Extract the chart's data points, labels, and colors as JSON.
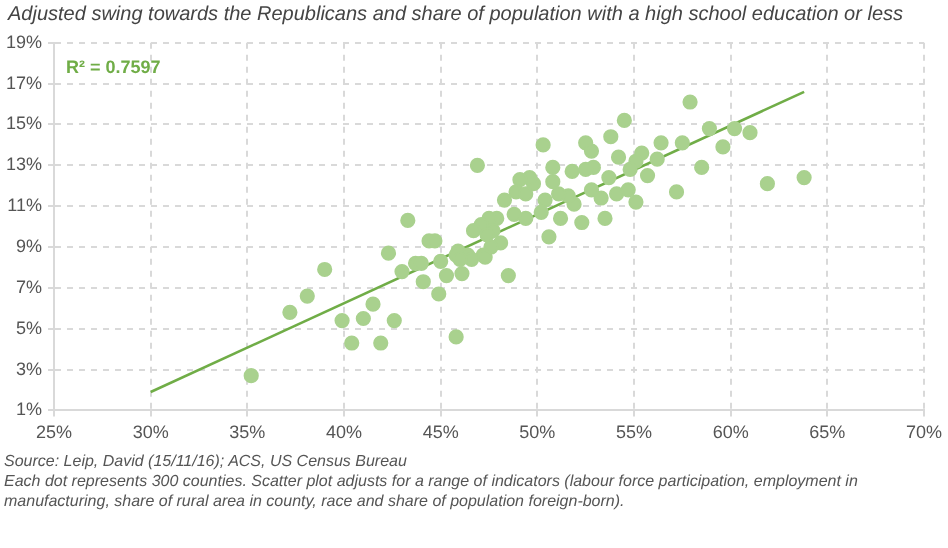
{
  "chart_data": {
    "type": "scatter",
    "title": "Adjusted swing towards the Republicans and share of population with a high school education or less",
    "xlim": [
      25,
      70
    ],
    "xticks": [
      {
        "value": 25,
        "label": "25%"
      },
      {
        "value": 30,
        "label": "30%"
      },
      {
        "value": 35,
        "label": "35%"
      },
      {
        "value": 40,
        "label": "40%"
      },
      {
        "value": 45,
        "label": "45%"
      },
      {
        "value": 50,
        "label": "50%"
      },
      {
        "value": 55,
        "label": "55%"
      },
      {
        "value": 60,
        "label": "60%"
      },
      {
        "value": 65,
        "label": "65%"
      },
      {
        "value": 70,
        "label": "70%"
      }
    ],
    "ylim": [
      1,
      19
    ],
    "yticks": [
      {
        "value": 1,
        "label": "1%"
      },
      {
        "value": 3,
        "label": "3%"
      },
      {
        "value": 5,
        "label": "5%"
      },
      {
        "value": 7,
        "label": "7%"
      },
      {
        "value": 9,
        "label": "9%"
      },
      {
        "value": 11,
        "label": "11%"
      },
      {
        "value": 13,
        "label": "13%"
      },
      {
        "value": 15,
        "label": "15%"
      },
      {
        "value": 17,
        "label": "17%"
      },
      {
        "value": 19,
        "label": "19%"
      }
    ],
    "grid": true,
    "legend": false,
    "marker": "circle",
    "series": [
      {
        "color": "#a9d18e",
        "x": [
          57.9,
          58.9,
          60.2,
          61.0,
          59.6,
          58.5,
          61.9,
          63.8,
          57.2,
          57.5,
          56.4,
          56.2,
          55.7,
          55.4,
          55.1,
          54.5,
          53.8,
          54.2,
          54.8,
          54.7,
          54.1,
          55.1,
          53.5,
          53.3,
          52.8,
          53.7,
          52.5,
          52.8,
          52.9,
          52.5,
          51.8,
          52.3,
          51.9,
          51.6,
          51.2,
          51.1,
          50.8,
          50.8,
          50.3,
          50.4,
          50.2,
          50.6,
          49.8,
          49.6,
          49.1,
          48.9,
          49.4,
          49.4,
          48.8,
          48.3,
          47.9,
          47.5,
          46.9,
          47.1,
          46.7,
          47.7,
          47.4,
          48.1,
          47.6,
          44.4,
          44.7,
          43.3,
          45.9,
          46.4,
          47.2,
          42.3,
          39.0,
          43.0,
          43.7,
          44.0,
          44.1,
          45.0,
          45.3,
          44.9,
          45.8,
          46.1,
          46.6,
          46.0,
          47.3,
          48.5,
          45.8,
          38.1,
          37.2,
          41.5,
          39.9,
          41.0,
          42.6,
          40.4,
          41.9,
          35.2
        ],
        "values": [
          16.1,
          14.8,
          14.8,
          14.6,
          13.9,
          12.9,
          12.1,
          12.4,
          11.7,
          14.1,
          14.1,
          13.3,
          12.5,
          13.6,
          13.2,
          15.2,
          14.4,
          13.4,
          12.8,
          11.8,
          11.6,
          11.2,
          10.4,
          11.4,
          11.8,
          12.4,
          14.1,
          13.7,
          12.9,
          12.8,
          12.7,
          10.2,
          11.1,
          11.5,
          10.4,
          11.6,
          12.2,
          12.9,
          14.0,
          11.3,
          10.7,
          9.5,
          12.1,
          12.4,
          12.3,
          11.7,
          11.6,
          10.4,
          10.6,
          11.3,
          10.4,
          10.4,
          13.0,
          10.1,
          9.8,
          9.8,
          9.6,
          9.2,
          9.0,
          9.3,
          9.3,
          10.3,
          8.8,
          8.6,
          8.6,
          8.7,
          7.9,
          7.8,
          8.2,
          8.2,
          7.3,
          8.3,
          7.6,
          6.7,
          8.6,
          7.7,
          8.4,
          8.4,
          8.5,
          7.6,
          4.6,
          6.6,
          5.8,
          6.2,
          5.4,
          5.5,
          5.4,
          4.3,
          4.3,
          2.7
        ]
      },
      {
        "type": "line",
        "color": "#70ad47",
        "marker": "none",
        "x": [
          30,
          63.8
        ],
        "values": [
          1.9,
          16.6
        ]
      }
    ],
    "annotations": [
      "R² = 0.7597",
      "Source: Leip, David (15/11/16); ACS, US Census Bureau",
      "Each dot represents 300 counties. Scatter plot adjusts for a range of indicators (labour force participation, employment in manufacturing, share of rural area in county, race and share of population foreign-born)."
    ]
  }
}
